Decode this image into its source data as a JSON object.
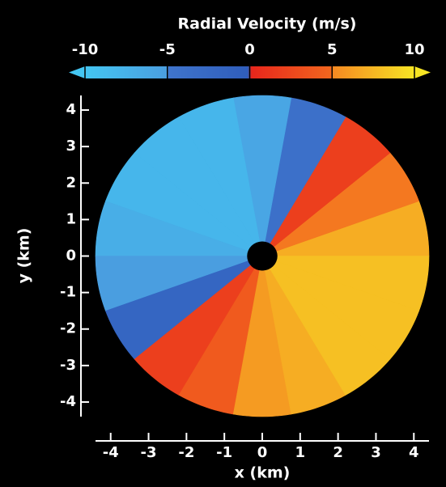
{
  "chart_data": {
    "type": "radar-ppi",
    "colorbar_title": "Radial Velocity (m/s)",
    "clim": [
      -10,
      10
    ],
    "cticks": [
      -10,
      -5,
      0,
      5,
      10
    ],
    "colormap": [
      {
        "value": -10,
        "color": "#44c6f2"
      },
      {
        "value": -5,
        "color": "#4a9ee0"
      },
      {
        "value": -4.9,
        "color": "#3f74cc"
      },
      {
        "value": -0.1,
        "color": "#2f5dbb"
      },
      {
        "value": 0.1,
        "color": "#e8261c"
      },
      {
        "value": 4.9,
        "color": "#f2661e"
      },
      {
        "value": 5.1,
        "color": "#f58a22"
      },
      {
        "value": 10,
        "color": "#f7e524"
      }
    ],
    "xlabel": "x (km)",
    "ylabel": "y (km)",
    "xlim": [
      -4.4,
      4.4
    ],
    "ylim": [
      -4.4,
      4.4
    ],
    "xticks": [
      -4,
      -3,
      -2,
      -1,
      0,
      1,
      2,
      3,
      4
    ],
    "yticks": [
      -4,
      -3,
      -2,
      -1,
      0,
      1,
      2,
      3,
      4
    ],
    "range_km": [
      0.4,
      4.4
    ],
    "sectors": {
      "azimuth_deg": [
        0,
        20,
        40,
        60,
        80,
        100,
        120,
        140,
        160,
        180,
        200,
        220,
        240,
        260,
        280,
        300,
        320,
        340
      ],
      "velocity": [
        7,
        5,
        2,
        -4,
        -6,
        -8,
        -8,
        -8,
        -7,
        -5,
        -2,
        2,
        4,
        6,
        7,
        8,
        8,
        8
      ]
    }
  }
}
